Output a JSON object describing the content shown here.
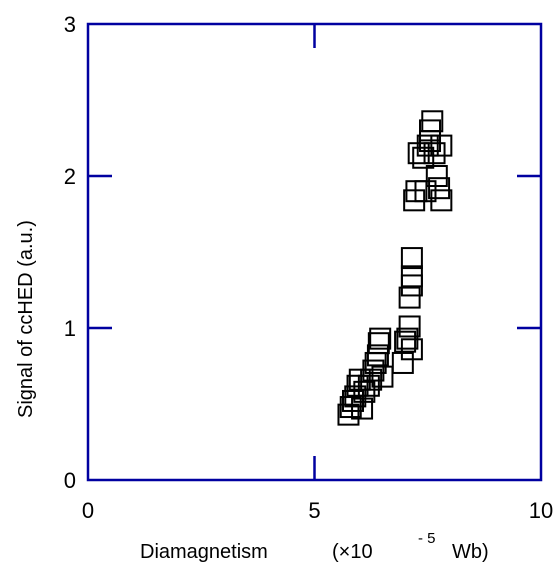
{
  "chart_data": {
    "type": "scatter",
    "xlabel": {
      "main": "Diamagnetism",
      "unit_prefix": "(×10",
      "exponent": "- 5",
      "unit_suffix": "Wb)"
    },
    "ylabel": "Signal of ccHED    (a.u.)",
    "xlim": [
      0,
      10
    ],
    "ylim": [
      0,
      3
    ],
    "x_ticks": [
      "0",
      "5",
      "10"
    ],
    "y_ticks": [
      "0",
      "1",
      "2",
      "3"
    ],
    "grid": false,
    "marker": "open-square",
    "colors": {
      "frame": "#0000a0",
      "marker": "#000000"
    },
    "series": [
      {
        "points": [
          [
            5.75,
            0.43
          ],
          [
            5.8,
            0.48
          ],
          [
            5.85,
            0.52
          ],
          [
            5.9,
            0.55
          ],
          [
            5.95,
            0.62
          ],
          [
            6.0,
            0.66
          ],
          [
            6.05,
            0.47
          ],
          [
            6.1,
            0.58
          ],
          [
            6.2,
            0.62
          ],
          [
            6.25,
            0.66
          ],
          [
            6.3,
            0.72
          ],
          [
            6.35,
            0.77
          ],
          [
            6.4,
            0.82
          ],
          [
            6.42,
            0.9
          ],
          [
            6.45,
            0.93
          ],
          [
            6.5,
            0.68
          ],
          [
            6.95,
            0.77
          ],
          [
            7.0,
            0.91
          ],
          [
            7.05,
            0.93
          ],
          [
            7.1,
            1.01
          ],
          [
            7.15,
            0.86
          ],
          [
            7.1,
            1.2
          ],
          [
            7.15,
            1.28
          ],
          [
            7.15,
            1.34
          ],
          [
            7.15,
            1.46
          ],
          [
            7.2,
            1.84
          ],
          [
            7.25,
            1.9
          ],
          [
            7.3,
            2.15
          ],
          [
            7.4,
            2.12
          ],
          [
            7.45,
            1.9
          ],
          [
            7.5,
            2.2
          ],
          [
            7.55,
            2.23
          ],
          [
            7.55,
            2.3
          ],
          [
            7.6,
            2.36
          ],
          [
            7.65,
            2.15
          ],
          [
            7.7,
            2.0
          ],
          [
            7.75,
            1.92
          ],
          [
            7.8,
            1.84
          ],
          [
            7.8,
            2.2
          ]
        ]
      }
    ]
  }
}
